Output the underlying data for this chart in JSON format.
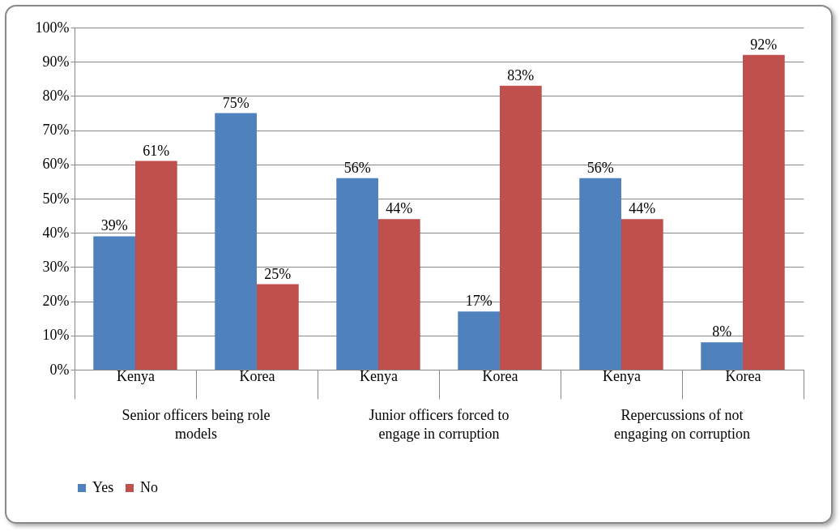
{
  "chart_data": {
    "type": "bar",
    "categories": [
      "Kenya",
      "Korea",
      "Kenya",
      "Korea",
      "Kenya",
      "Korea"
    ],
    "annotations": [
      "Senior officers being role models",
      "Junior officers forced to engage in corruption",
      "Repercussions of not engaging on corruption"
    ],
    "series": [
      {
        "name": "Yes",
        "color": "#4f81bd",
        "values": [
          39,
          75,
          56,
          17,
          56,
          8
        ],
        "value_labels": [
          "39%",
          "75%",
          "56%",
          "17%",
          "56%",
          "8%"
        ]
      },
      {
        "name": "No",
        "color": "#c0504d",
        "values": [
          61,
          25,
          44,
          83,
          44,
          92
        ],
        "value_labels": [
          "61%",
          "25%",
          "44%",
          "83%",
          "44%",
          "92%"
        ]
      }
    ],
    "ylim": [
      0,
      100
    ],
    "yticks": [
      {
        "value": 0,
        "label": "0%"
      },
      {
        "value": 10,
        "label": "10%"
      },
      {
        "value": 20,
        "label": "20%"
      },
      {
        "value": 30,
        "label": "30%"
      },
      {
        "value": 40,
        "label": "40%"
      },
      {
        "value": 50,
        "label": "50%"
      },
      {
        "value": 60,
        "label": "60%"
      },
      {
        "value": 70,
        "label": "70%"
      },
      {
        "value": 80,
        "label": "80%"
      },
      {
        "value": 90,
        "label": "90%"
      },
      {
        "value": 100,
        "label": "100%"
      }
    ],
    "grid": "y",
    "legend": "bottom"
  }
}
